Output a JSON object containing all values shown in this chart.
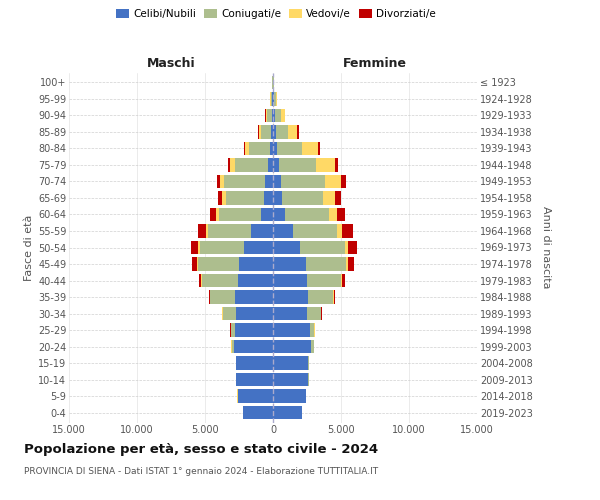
{
  "age_groups": [
    "0-4",
    "5-9",
    "10-14",
    "15-19",
    "20-24",
    "25-29",
    "30-34",
    "35-39",
    "40-44",
    "45-49",
    "50-54",
    "55-59",
    "60-64",
    "65-69",
    "70-74",
    "75-79",
    "80-84",
    "85-89",
    "90-94",
    "95-99",
    "100+"
  ],
  "birth_years": [
    "2019-2023",
    "2014-2018",
    "2009-2013",
    "2004-2008",
    "1999-2003",
    "1994-1998",
    "1989-1993",
    "1984-1988",
    "1979-1983",
    "1974-1978",
    "1969-1973",
    "1964-1968",
    "1959-1963",
    "1954-1958",
    "1949-1953",
    "1944-1948",
    "1939-1943",
    "1934-1938",
    "1929-1933",
    "1924-1928",
    "≤ 1923"
  ],
  "colors": {
    "celibi": "#4472C4",
    "coniugati": "#ADBE8E",
    "vedovi": "#FFD966",
    "divorziati": "#C00000"
  },
  "maschi": {
    "celibi": [
      2200,
      2600,
      2700,
      2700,
      2900,
      2800,
      2700,
      2800,
      2600,
      2500,
      2100,
      1600,
      900,
      650,
      600,
      400,
      250,
      150,
      100,
      50,
      20
    ],
    "coniugati": [
      5,
      10,
      20,
      50,
      150,
      300,
      1000,
      1800,
      2600,
      3000,
      3300,
      3200,
      3100,
      2800,
      3000,
      2400,
      1500,
      700,
      350,
      120,
      30
    ],
    "vedovi": [
      0,
      1,
      1,
      2,
      5,
      10,
      20,
      40,
      60,
      80,
      100,
      150,
      200,
      280,
      300,
      350,
      300,
      200,
      100,
      30,
      5
    ],
    "divorziati": [
      0,
      1,
      2,
      5,
      10,
      20,
      50,
      100,
      200,
      350,
      500,
      600,
      450,
      350,
      250,
      150,
      100,
      50,
      20,
      10,
      2
    ]
  },
  "femmine": {
    "nubili": [
      2100,
      2400,
      2600,
      2600,
      2800,
      2700,
      2500,
      2600,
      2500,
      2400,
      2000,
      1500,
      900,
      650,
      600,
      450,
      300,
      200,
      120,
      60,
      20
    ],
    "coniugate": [
      5,
      10,
      25,
      60,
      200,
      350,
      1000,
      1800,
      2500,
      3000,
      3300,
      3200,
      3200,
      3000,
      3200,
      2700,
      1800,
      900,
      450,
      150,
      30
    ],
    "vedove": [
      0,
      1,
      1,
      3,
      8,
      15,
      30,
      60,
      100,
      150,
      250,
      400,
      600,
      900,
      1200,
      1400,
      1200,
      700,
      300,
      80,
      5
    ],
    "divorziate": [
      0,
      1,
      2,
      5,
      12,
      25,
      50,
      100,
      200,
      400,
      650,
      800,
      600,
      450,
      350,
      250,
      150,
      80,
      30,
      15,
      2
    ]
  },
  "title": "Popolazione per età, sesso e stato civile - 2024",
  "subtitle": "PROVINCIA DI SIENA - Dati ISTAT 1° gennaio 2024 - Elaborazione TUTTITALIA.IT",
  "maschi_label": "Maschi",
  "femmine_label": "Femmine",
  "ylabel_left": "Fasce di età",
  "ylabel_right": "Anni di nascita",
  "legend_labels": [
    "Celibi/Nubili",
    "Coniugati/e",
    "Vedovi/e",
    "Divorziati/e"
  ],
  "xlim": 15000,
  "xtick_labels": [
    "15.000",
    "10.000",
    "5.000",
    "0",
    "5.000",
    "10.000",
    "15.000"
  ],
  "bg_color": "#FFFFFF",
  "grid_color": "#CCCCCC",
  "text_color": "#555555",
  "title_color": "#111111"
}
